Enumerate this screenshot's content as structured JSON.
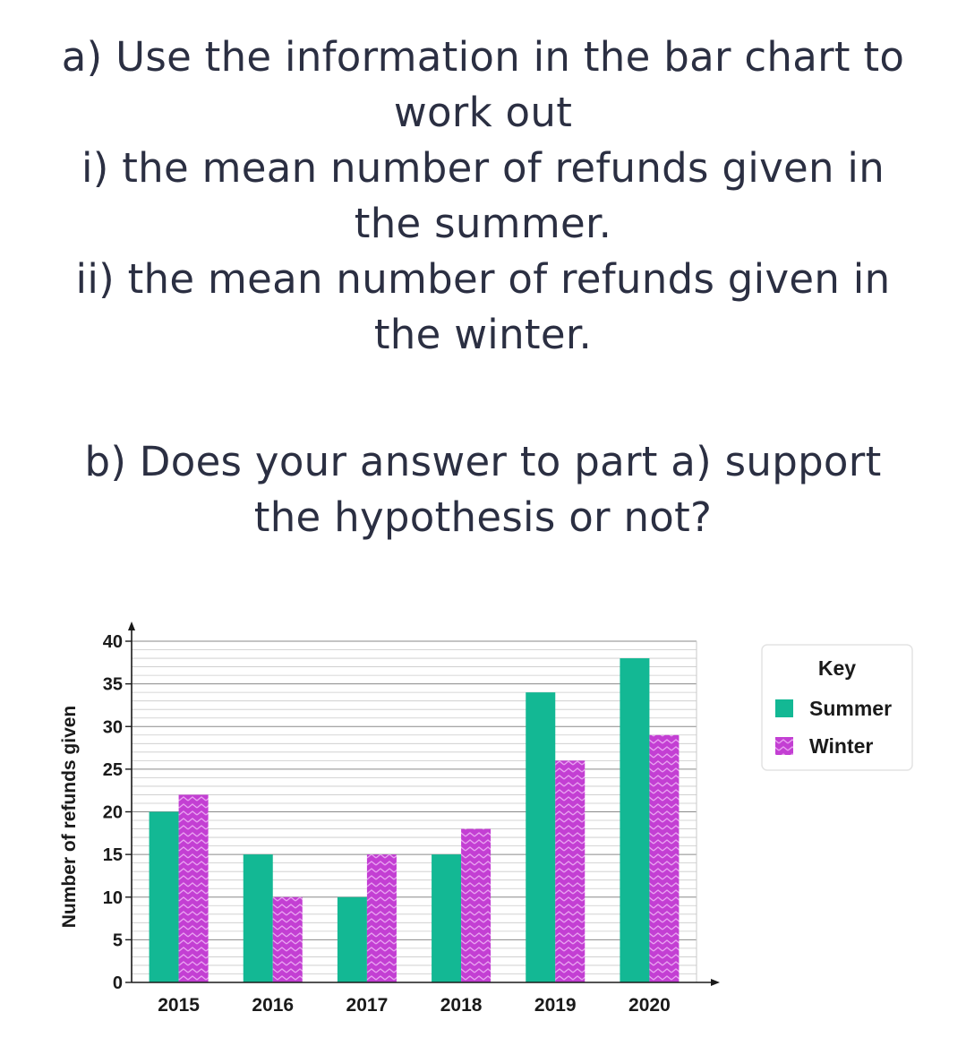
{
  "question": {
    "part_a": [
      "a) Use the information in the bar chart to",
      "work out",
      "i) the mean number of refunds given in",
      "the summer.",
      "ii) the mean number of refunds given in",
      "the winter."
    ],
    "part_b": [
      "b) Does your answer to part a) support",
      "the hypothesis or not?"
    ]
  },
  "chart_data": {
    "type": "bar",
    "title": "",
    "xlabel": "",
    "ylabel": "Number of refunds given",
    "categories": [
      "2015",
      "2016",
      "2017",
      "2018",
      "2019",
      "2020"
    ],
    "series": [
      {
        "name": "Summer",
        "values": [
          20,
          15,
          10,
          15,
          34,
          38
        ],
        "color": "#13b894"
      },
      {
        "name": "Winter",
        "values": [
          22,
          10,
          15,
          18,
          26,
          29
        ],
        "color": "#c33fd3",
        "pattern": "zigzag"
      }
    ],
    "ylim": [
      0,
      40
    ],
    "yticks": [
      0,
      5,
      10,
      15,
      20,
      25,
      30,
      35,
      40
    ],
    "minor_step": 1,
    "grid": true,
    "legend": {
      "title": "Key",
      "position": "right"
    }
  }
}
